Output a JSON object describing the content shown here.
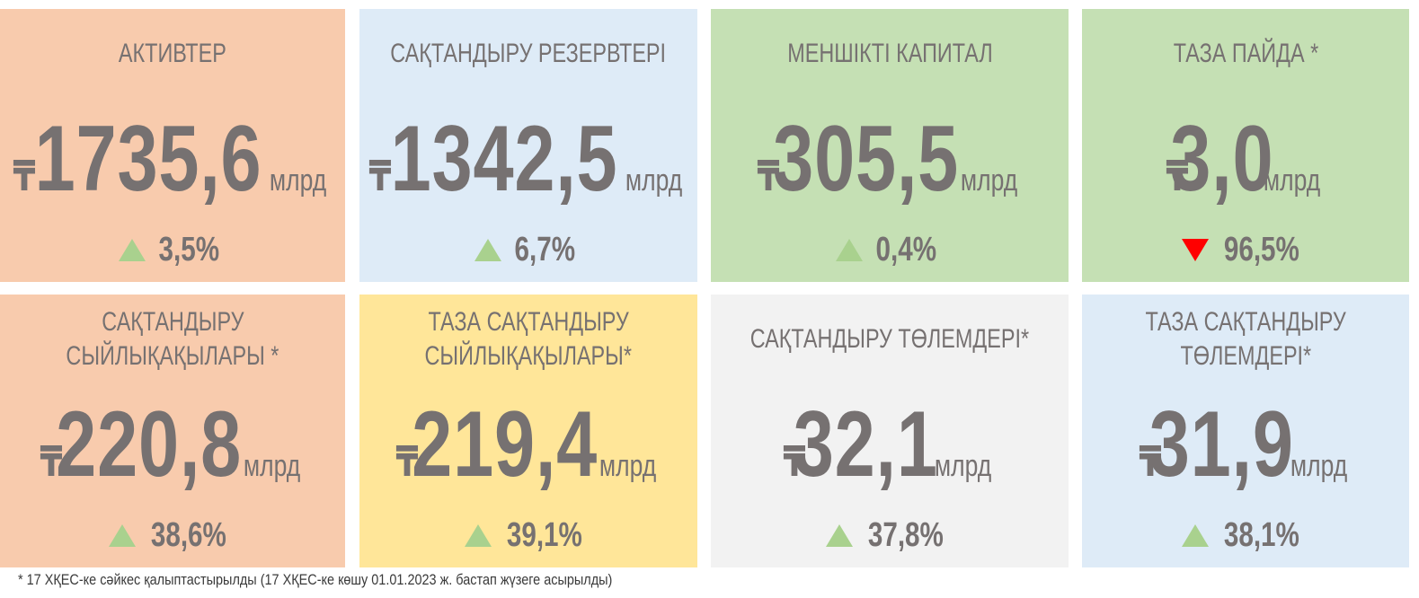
{
  "cards": [
    {
      "title": [
        "АКТИВТЕР"
      ],
      "currency": "₸",
      "value": "1735,6",
      "unit": "млрд",
      "change": "3,5%",
      "direction": "up",
      "color": "#f8cbad"
    },
    {
      "title": [
        "САҚТАНДЫРУ РЕЗЕРВТЕРІ"
      ],
      "currency": "₸",
      "value": "1342,5",
      "unit": "млрд",
      "change": "6,7%",
      "direction": "up",
      "color": "#deebf7"
    },
    {
      "title": [
        "МЕНШІКТІ КАПИТАЛ"
      ],
      "currency": "₸",
      "value": "305,5",
      "unit": "млрд",
      "change": "0,4%",
      "direction": "up",
      "color": "#c5e0b4"
    },
    {
      "title": [
        "ТАЗА ПАЙДА *"
      ],
      "currency": "₸",
      "value": "3,0",
      "unit": "млрд",
      "change": "96,5%",
      "direction": "down",
      "color": "#c5e0b4"
    },
    {
      "title": [
        "САҚТАНДЫРУ",
        "СЫЙЛЫҚАҚЫЛАРЫ *"
      ],
      "currency": "₸",
      "value": "220,8",
      "unit": "млрд",
      "change": "38,6%",
      "direction": "up",
      "color": "#f8cbad"
    },
    {
      "title": [
        "ТАЗА САҚТАНДЫРУ",
        "СЫЙЛЫҚАҚЫЛАРЫ*"
      ],
      "currency": "₸",
      "value": "219,4",
      "unit": "млрд",
      "change": "39,1%",
      "direction": "up",
      "color": "#ffe699"
    },
    {
      "title": [
        "САҚТАНДЫРУ ТӨЛЕМДЕРІ*"
      ],
      "currency": "₸",
      "value": "32,1",
      "unit": "млрд",
      "change": "37,8%",
      "direction": "up",
      "color": "#f2f2f2"
    },
    {
      "title": [
        "ТАЗА САҚТАНДЫРУ",
        "ТӨЛЕМДЕРІ*"
      ],
      "currency": "₸",
      "value": "31,9",
      "unit": "млрд",
      "change": "38,1%",
      "direction": "up",
      "color": "#deebf7"
    }
  ],
  "footnote": "* 17 ХҚЕС-ке сәйкес қалыптастырылды (17 ХҚЕС-ке көшу 01.01.2023 ж. бастап жүзеге асырылды)",
  "arrow_colors": {
    "up": "#a9d18e",
    "down": "#ff0000"
  }
}
